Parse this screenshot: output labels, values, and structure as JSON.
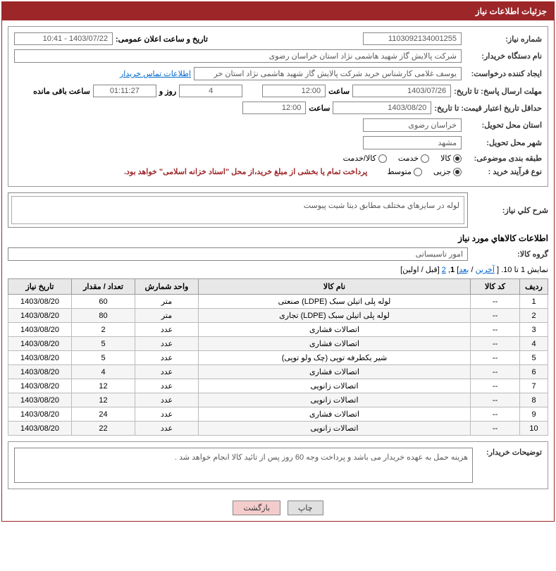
{
  "header": "جزئیات اطلاعات نیاز",
  "fields": {
    "need_no_label": "شماره نیاز:",
    "need_no": "1103092134001255",
    "announce_label": "تاریخ و ساعت اعلان عمومی:",
    "announce": "1403/07/22 - 10:41",
    "buyer_org_label": "نام دستگاه خریدار:",
    "buyer_org": "شرکت پالایش گاز شهید هاشمی نژاد   استان خراسان رضوی",
    "requester_label": "ایجاد کننده درخواست:",
    "requester": "یوسف غلامی کارشناس خرید شرکت پالایش گاز شهید هاشمی نژاد   استان خر",
    "contact_link": "اطلاعات تماس خریدار",
    "deadline_label": "مهلت ارسال پاسخ: تا تاریخ:",
    "deadline_date": "1403/07/26",
    "time_label": "ساعت",
    "deadline_time": "12:00",
    "days_val": "4",
    "days_label": "روز و",
    "countdown": "01:11:27",
    "remaining_label": "ساعت باقی مانده",
    "validity_label": "حداقل تاریخ اعتبار قیمت: تا تاریخ:",
    "validity_date": "1403/08/20",
    "validity_time": "12:00",
    "province_label": "استان محل تحویل:",
    "province": "خراسان رضوی",
    "city_label": "شهر محل تحویل:",
    "city": "مشهد",
    "category_label": "طبقه بندی موضوعی:",
    "cat_goods": "کالا",
    "cat_service": "خدمت",
    "cat_both": "کالا/خدمت",
    "process_label": "نوع فرآیند خرید :",
    "proc_partial": "جزیی",
    "proc_medium": "متوسط",
    "process_note": "پرداخت تمام یا بخشی از مبلغ خرید،از محل \"اسناد خزانه اسلامی\" خواهد بود.",
    "general_desc_label": "شرح کلي نياز:",
    "general_desc": "لوله در سايزهاي مختلف مطابق ديتا شيت پيوست",
    "items_title": "اطلاعات كالاهاي مورد نياز",
    "group_label": "گروه کالا:",
    "group": "امور تاسیساتی",
    "pagination_text": "نمایش 1 تا 10. [ ",
    "pag_last": "آخرین",
    "pag_sep1": " / ",
    "pag_next": "بعد",
    "pag_close": "] ",
    "pag_1": "1",
    "pag_comma": ", ",
    "pag_2": "2",
    "pag_prev": " [قبل / اولین]",
    "buyer_notes_label": "توضیحات خریدار:",
    "buyer_notes": "هزینه حمل به عهده خریدار می باشد و پرداخت وجه 60 روز پس از تائید کالا انجام خواهد شد .",
    "btn_print": "چاپ",
    "btn_back": "بازگشت"
  },
  "table": {
    "headers": {
      "row": "ردیف",
      "code": "کد کالا",
      "name": "نام کالا",
      "unit": "واحد شمارش",
      "qty": "تعداد / مقدار",
      "date": "تاریخ نیاز"
    },
    "rows": [
      {
        "n": "1",
        "code": "--",
        "name": "لوله پلی اتیلن سبک (LDPE) صنعتی",
        "unit": "متر",
        "qty": "60",
        "date": "1403/08/20"
      },
      {
        "n": "2",
        "code": "--",
        "name": "لوله پلی اتیلن سبک (LDPE) تجاری",
        "unit": "متر",
        "qty": "80",
        "date": "1403/08/20"
      },
      {
        "n": "3",
        "code": "--",
        "name": "اتصالات فشاری",
        "unit": "عدد",
        "qty": "2",
        "date": "1403/08/20"
      },
      {
        "n": "4",
        "code": "--",
        "name": "اتصالات فشاری",
        "unit": "عدد",
        "qty": "5",
        "date": "1403/08/20"
      },
      {
        "n": "5",
        "code": "--",
        "name": "شیر یکطرفه توپی (چک ولو توپی)",
        "unit": "عدد",
        "qty": "5",
        "date": "1403/08/20"
      },
      {
        "n": "6",
        "code": "--",
        "name": "اتصالات فشاری",
        "unit": "عدد",
        "qty": "4",
        "date": "1403/08/20"
      },
      {
        "n": "7",
        "code": "--",
        "name": "اتصالات زانویی",
        "unit": "عدد",
        "qty": "12",
        "date": "1403/08/20"
      },
      {
        "n": "8",
        "code": "--",
        "name": "اتصالات زانویی",
        "unit": "عدد",
        "qty": "12",
        "date": "1403/08/20"
      },
      {
        "n": "9",
        "code": "--",
        "name": "اتصالات فشاری",
        "unit": "عدد",
        "qty": "24",
        "date": "1403/08/20"
      },
      {
        "n": "10",
        "code": "--",
        "name": "اتصالات زانویی",
        "unit": "عدد",
        "qty": "22",
        "date": "1403/08/20"
      }
    ]
  }
}
